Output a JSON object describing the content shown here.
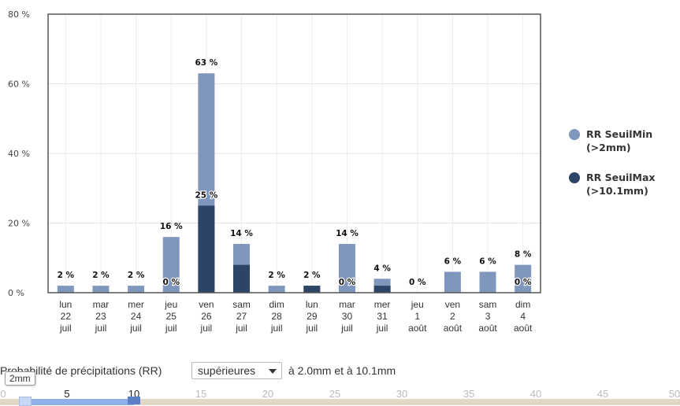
{
  "chart_data": {
    "type": "bar",
    "title": "",
    "xlabel": "",
    "ylabel": "",
    "ylim": [
      0,
      80
    ],
    "y_ticks": [
      "0 %",
      "20 %",
      "40 %",
      "60 %",
      "80 %"
    ],
    "categories": [
      [
        "lun",
        "22",
        "juil"
      ],
      [
        "mar",
        "23",
        "juil"
      ],
      [
        "mer",
        "24",
        "juil"
      ],
      [
        "jeu",
        "25",
        "juil"
      ],
      [
        "ven",
        "26",
        "juil"
      ],
      [
        "sam",
        "27",
        "juil"
      ],
      [
        "dim",
        "28",
        "juil"
      ],
      [
        "lun",
        "29",
        "juil"
      ],
      [
        "mar",
        "30",
        "juil"
      ],
      [
        "mer",
        "31",
        "juil"
      ],
      [
        "jeu",
        "1",
        "août"
      ],
      [
        "ven",
        "2",
        "août"
      ],
      [
        "sam",
        "3",
        "août"
      ],
      [
        "dim",
        "4",
        "août"
      ]
    ],
    "series": [
      {
        "name": "RR SeuilMin (>2mm)",
        "color": "#7f97bd",
        "values": [
          2,
          2,
          2,
          16,
          63,
          14,
          2,
          2,
          14,
          4,
          0,
          6,
          6,
          8
        ],
        "labels": [
          "2 %",
          "2 %",
          "2 %",
          "16 %",
          "63 %",
          "14 %",
          "2 %",
          "2 %",
          "14 %",
          "4 %",
          "0 %",
          "6 %",
          "6 %",
          "8 %"
        ]
      },
      {
        "name": "RR SeuilMax (>10.1mm)",
        "color": "#2c4466",
        "values": [
          0,
          0,
          0,
          0,
          25,
          8,
          0,
          2,
          0,
          2,
          0,
          0,
          0,
          0
        ],
        "labels": [
          "",
          "",
          "",
          "0 %",
          "25 %",
          "",
          "",
          "",
          "0 %",
          "",
          "",
          "",
          "",
          "0 %"
        ]
      }
    ],
    "grid": true,
    "legend_position": "right"
  },
  "legend": {
    "items": [
      {
        "label": "RR SeuilMin\n(>2mm)",
        "color": "#7f97bd"
      },
      {
        "label": "RR SeuilMax\n(>10.1mm)",
        "color": "#2c4466"
      }
    ]
  },
  "controls": {
    "label_prefix": "Probabilité de précipitations (RR)",
    "select_value": "supérieures",
    "label_suffix": "à 2.0mm et à 10.1mm"
  },
  "slider": {
    "ticks": [
      "0",
      "5",
      "10",
      "15",
      "20",
      "25",
      "30",
      "35",
      "40",
      "45",
      "50"
    ],
    "min_value": 2,
    "max_value": 10.1,
    "tooltip": "2mm"
  }
}
